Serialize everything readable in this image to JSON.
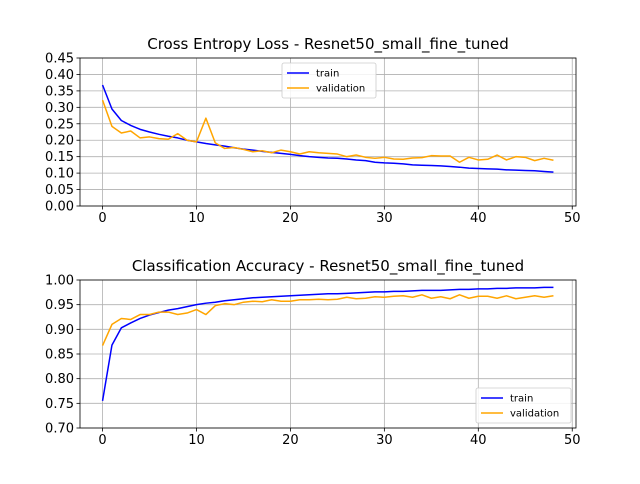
{
  "chart_data": [
    {
      "type": "line",
      "title": "Cross Entropy Loss - Resnet50_small_fine_tuned",
      "xlabel": "",
      "ylabel": "",
      "xlim": [
        -2.4,
        50.4
      ],
      "ylim": [
        0,
        0.45
      ],
      "x_ticks": [
        0,
        10,
        20,
        30,
        40,
        50
      ],
      "y_ticks": [
        0.0,
        0.05,
        0.1,
        0.15,
        0.2,
        0.25,
        0.3,
        0.35,
        0.4,
        0.45
      ],
      "y_tick_decimals": 2,
      "grid": true,
      "legend_position": "upper-center",
      "x": [
        0,
        1,
        2,
        3,
        4,
        5,
        6,
        7,
        8,
        9,
        10,
        11,
        12,
        13,
        14,
        15,
        16,
        17,
        18,
        19,
        20,
        21,
        22,
        23,
        24,
        25,
        26,
        27,
        28,
        29,
        30,
        31,
        32,
        33,
        34,
        35,
        36,
        37,
        38,
        39,
        40,
        41,
        42,
        43,
        44,
        45,
        46,
        47,
        48
      ],
      "series": [
        {
          "name": "train",
          "color": "#0000ff",
          "values": [
            0.368,
            0.295,
            0.26,
            0.245,
            0.233,
            0.225,
            0.218,
            0.212,
            0.207,
            0.2,
            0.195,
            0.19,
            0.186,
            0.182,
            0.177,
            0.173,
            0.17,
            0.166,
            0.163,
            0.16,
            0.157,
            0.153,
            0.15,
            0.148,
            0.146,
            0.145,
            0.143,
            0.14,
            0.138,
            0.133,
            0.131,
            0.13,
            0.128,
            0.125,
            0.124,
            0.123,
            0.122,
            0.12,
            0.118,
            0.115,
            0.114,
            0.113,
            0.112,
            0.11,
            0.109,
            0.108,
            0.107,
            0.105,
            0.103
          ]
        },
        {
          "name": "validation",
          "color": "#ffa500",
          "values": [
            0.322,
            0.242,
            0.222,
            0.228,
            0.207,
            0.21,
            0.205,
            0.203,
            0.22,
            0.2,
            0.195,
            0.267,
            0.192,
            0.175,
            0.178,
            0.172,
            0.165,
            0.168,
            0.162,
            0.17,
            0.165,
            0.158,
            0.165,
            0.162,
            0.16,
            0.158,
            0.15,
            0.155,
            0.148,
            0.145,
            0.148,
            0.143,
            0.142,
            0.146,
            0.147,
            0.153,
            0.152,
            0.152,
            0.133,
            0.148,
            0.14,
            0.142,
            0.155,
            0.14,
            0.15,
            0.148,
            0.138,
            0.145,
            0.139
          ]
        }
      ]
    },
    {
      "type": "line",
      "title": "Classification Accuracy - Resnet50_small_fine_tuned",
      "xlabel": "",
      "ylabel": "",
      "xlim": [
        -2.4,
        50.4
      ],
      "ylim": [
        0.7,
        1.0
      ],
      "x_ticks": [
        0,
        10,
        20,
        30,
        40,
        50
      ],
      "y_ticks": [
        0.7,
        0.75,
        0.8,
        0.85,
        0.9,
        0.95,
        1.0
      ],
      "y_tick_decimals": 2,
      "grid": true,
      "legend_position": "lower-right",
      "x": [
        0,
        1,
        2,
        3,
        4,
        5,
        6,
        7,
        8,
        9,
        10,
        11,
        12,
        13,
        14,
        15,
        16,
        17,
        18,
        19,
        20,
        21,
        22,
        23,
        24,
        25,
        26,
        27,
        28,
        29,
        30,
        31,
        32,
        33,
        34,
        35,
        36,
        37,
        38,
        39,
        40,
        41,
        42,
        43,
        44,
        45,
        46,
        47,
        48
      ],
      "series": [
        {
          "name": "train",
          "color": "#0000ff",
          "values": [
            0.755,
            0.868,
            0.903,
            0.913,
            0.922,
            0.929,
            0.934,
            0.939,
            0.942,
            0.946,
            0.95,
            0.953,
            0.955,
            0.958,
            0.96,
            0.962,
            0.964,
            0.965,
            0.966,
            0.967,
            0.968,
            0.969,
            0.97,
            0.971,
            0.972,
            0.972,
            0.973,
            0.974,
            0.975,
            0.976,
            0.976,
            0.977,
            0.977,
            0.978,
            0.979,
            0.979,
            0.979,
            0.98,
            0.981,
            0.981,
            0.982,
            0.982,
            0.983,
            0.983,
            0.984,
            0.984,
            0.984,
            0.985,
            0.985
          ]
        },
        {
          "name": "validation",
          "color": "#ffa500",
          "values": [
            0.867,
            0.91,
            0.922,
            0.92,
            0.93,
            0.93,
            0.935,
            0.935,
            0.93,
            0.933,
            0.94,
            0.93,
            0.948,
            0.952,
            0.95,
            0.955,
            0.957,
            0.956,
            0.96,
            0.957,
            0.957,
            0.96,
            0.96,
            0.961,
            0.96,
            0.961,
            0.965,
            0.962,
            0.963,
            0.966,
            0.965,
            0.967,
            0.968,
            0.965,
            0.97,
            0.963,
            0.966,
            0.962,
            0.97,
            0.963,
            0.967,
            0.967,
            0.963,
            0.968,
            0.962,
            0.965,
            0.968,
            0.965,
            0.968
          ]
        }
      ]
    }
  ]
}
